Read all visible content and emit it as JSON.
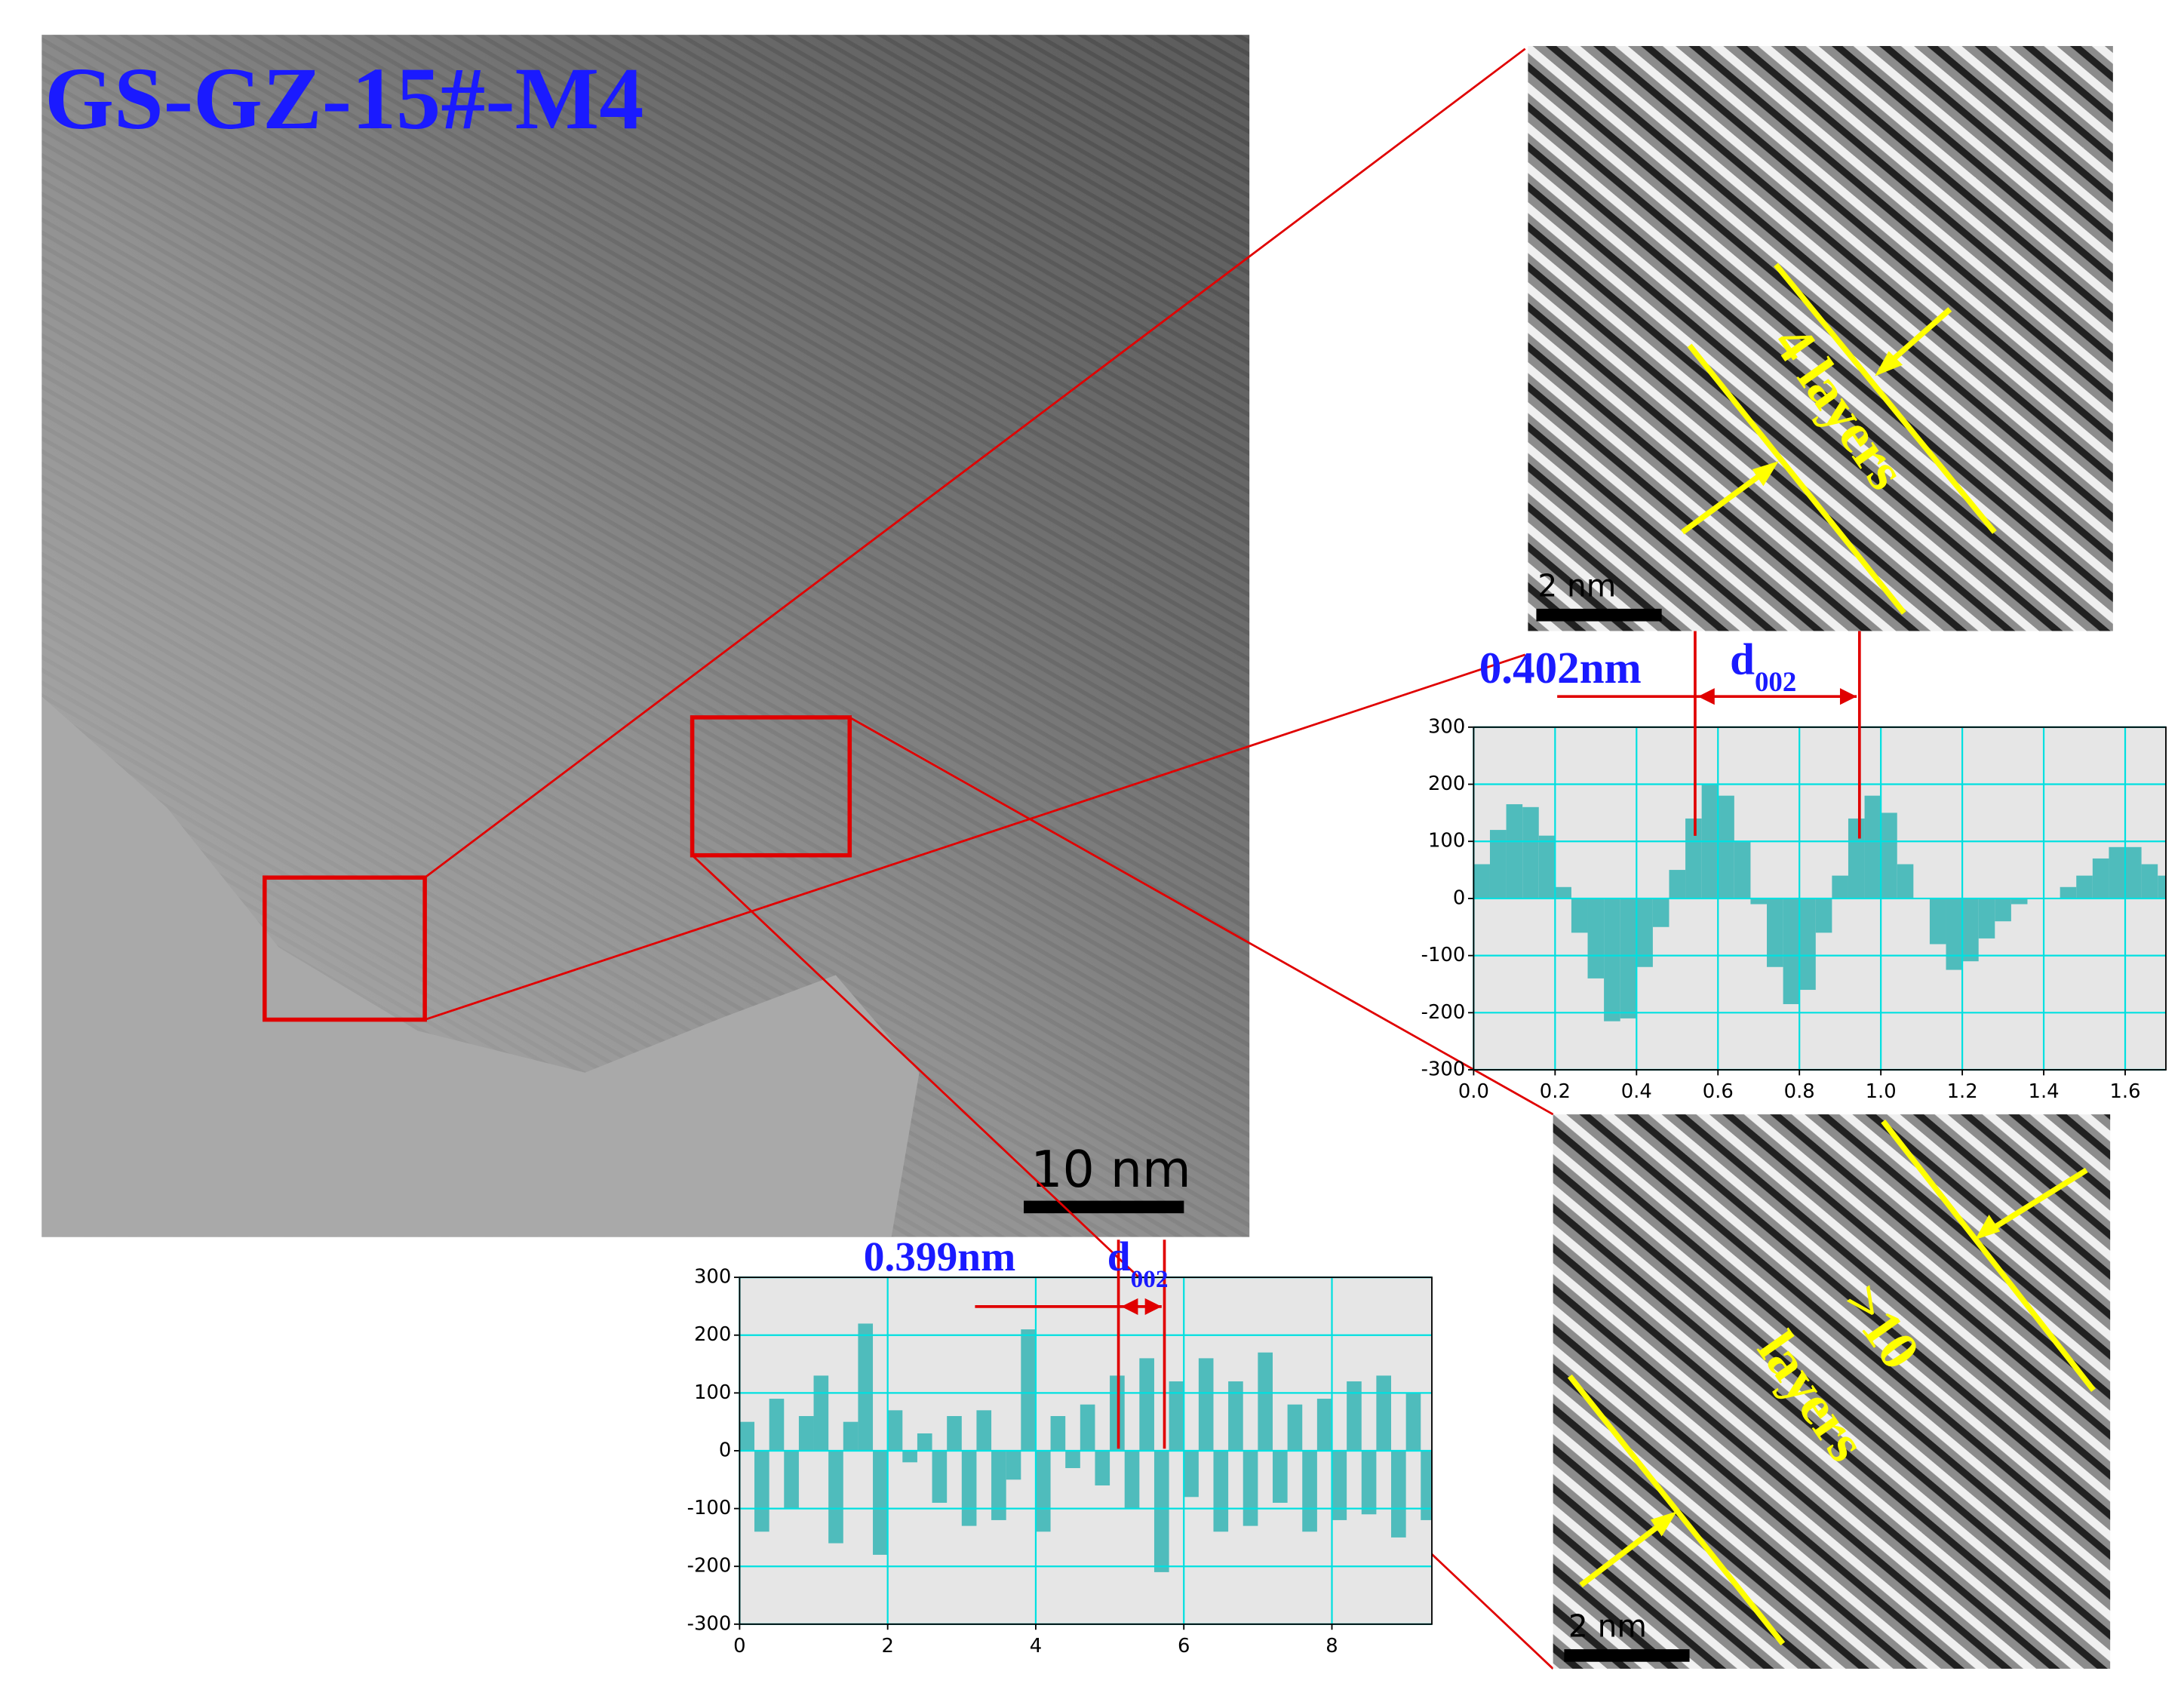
{
  "title": "GS-GZ-15#-M4",
  "scale_bars": {
    "main": "10 nm",
    "top": "2 nm",
    "bottom": "2 nm"
  },
  "labels": {
    "top_layers": "4 layers",
    "bottom_count": ">10",
    "bottom_layers": "layers"
  },
  "annotations": [
    {
      "spacing": "0.402nm",
      "symbol": "d",
      "subscript": "002"
    },
    {
      "spacing": "0.399nm",
      "symbol": "d",
      "subscript": "002"
    }
  ],
  "chart_data": [
    {
      "type": "bar",
      "color": "#4fbcbc",
      "grid": true,
      "x": [
        0,
        0.04,
        0.08,
        0.12,
        0.16,
        0.2,
        0.24,
        0.28,
        0.32,
        0.36,
        0.4,
        0.44,
        0.48,
        0.52,
        0.56,
        0.6,
        0.64,
        0.68,
        0.72,
        0.76,
        0.8,
        0.84,
        0.88,
        0.92,
        0.96,
        1.0,
        1.04,
        1.08,
        1.12,
        1.16,
        1.2,
        1.24,
        1.28,
        1.32,
        1.36,
        1.4,
        1.44,
        1.48,
        1.52,
        1.56,
        1.6,
        1.64,
        1.68
      ],
      "values": [
        60,
        120,
        165,
        160,
        110,
        20,
        -60,
        -140,
        -215,
        -210,
        -120,
        -50,
        50,
        140,
        200,
        180,
        100,
        -10,
        -120,
        -185,
        -160,
        -60,
        40,
        140,
        180,
        150,
        60,
        0,
        -80,
        -125,
        -110,
        -70,
        -40,
        -10,
        0,
        0,
        20,
        40,
        70,
        90,
        90,
        60,
        40
      ],
      "xlim": [
        0,
        1.7
      ],
      "ylim": [
        -300,
        300
      ],
      "xticks": [
        {
          "value": 0,
          "label": "0.0"
        },
        0.2,
        0.4,
        0.6,
        0.8,
        {
          "value": 1,
          "label": "1.0"
        },
        1.2,
        1.4,
        1.6
      ],
      "yticks": [
        -300,
        -200,
        -100,
        0,
        100,
        200,
        300
      ]
    },
    {
      "type": "bar",
      "color": "#4fbcbc",
      "grid": true,
      "x": [
        0,
        0.2,
        0.4,
        0.6,
        0.8,
        1.0,
        1.2,
        1.4,
        1.6,
        1.8,
        2.0,
        2.2,
        2.4,
        2.6,
        2.8,
        3.0,
        3.2,
        3.4,
        3.6,
        3.8,
        4.0,
        4.2,
        4.4,
        4.6,
        4.8,
        5.0,
        5.2,
        5.4,
        5.6,
        5.8,
        6.0,
        6.2,
        6.4,
        6.6,
        6.8,
        7.0,
        7.2,
        7.4,
        7.6,
        7.8,
        8.0,
        8.2,
        8.4,
        8.6,
        8.8,
        9.0,
        9.2
      ],
      "values": [
        50,
        -140,
        90,
        -100,
        60,
        130,
        -160,
        50,
        220,
        -180,
        70,
        -20,
        30,
        -90,
        60,
        -130,
        70,
        -120,
        -50,
        210,
        -140,
        60,
        -30,
        80,
        -60,
        130,
        -100,
        160,
        -210,
        120,
        -80,
        160,
        -140,
        120,
        -130,
        170,
        -90,
        80,
        -140,
        90,
        -120,
        120,
        -110,
        130,
        -150,
        100,
        -120
      ],
      "xlim": [
        0,
        9.35
      ],
      "ylim": [
        -300,
        300
      ],
      "xticks": [
        0,
        2,
        4,
        6,
        8
      ],
      "yticks": [
        -300,
        -200,
        -100,
        0,
        100,
        200,
        300
      ]
    }
  ]
}
